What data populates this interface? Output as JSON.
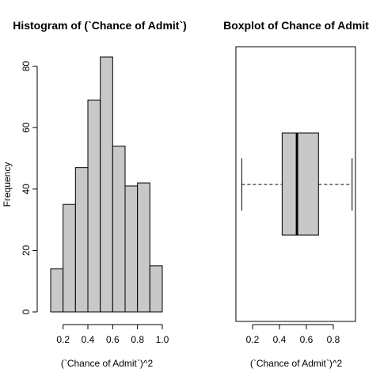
{
  "chart_data": [
    {
      "type": "bar",
      "title": "Histogram of (`Chance of Admit`)",
      "xlabel": "(`Chance of Admit`)^2",
      "ylabel": "Frequency",
      "bin_edges": [
        0.1,
        0.2,
        0.3,
        0.4,
        0.5,
        0.6,
        0.7,
        0.8,
        0.9,
        1.0
      ],
      "values": [
        14,
        35,
        47,
        69,
        83,
        54,
        41,
        42,
        15
      ],
      "xticks": [
        0.2,
        0.4,
        0.6,
        0.8,
        1.0
      ],
      "xtick_labels": [
        "0.2",
        "0.4",
        "0.6",
        "0.8",
        "1.0"
      ],
      "yticks": [
        0,
        20,
        40,
        60,
        80
      ],
      "ytick_labels": [
        "0",
        "20",
        "40",
        "60",
        "80"
      ],
      "xlim": [
        0.1,
        1.0
      ],
      "ylim": [
        0,
        83
      ],
      "bar_color": "#c8c8c8"
    },
    {
      "type": "boxplot",
      "title": "Boxplot of Chance of Admit",
      "xlabel": "(`Chance of Admit`)^2",
      "orientation": "horizontal",
      "whisker_low": 0.12,
      "q1": 0.42,
      "median": 0.53,
      "q3": 0.69,
      "whisker_high": 0.94,
      "xticks": [
        0.2,
        0.4,
        0.6,
        0.8
      ],
      "xtick_labels": [
        "0.2",
        "0.4",
        "0.6",
        "0.8"
      ],
      "xlim": [
        0.1,
        0.96
      ],
      "box_color": "#c8c8c8"
    }
  ]
}
